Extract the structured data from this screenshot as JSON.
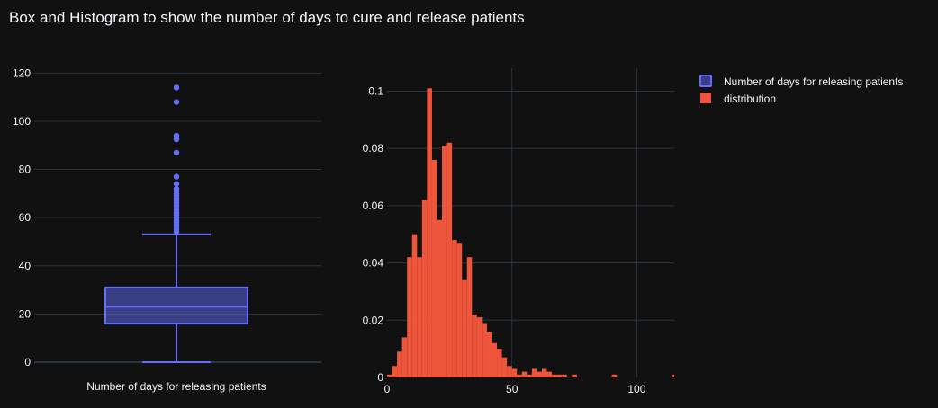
{
  "title": "Box and Histogram to show the number of days to cure and release patients",
  "colors": {
    "background": "#111111",
    "grid": "#283442",
    "box": "#636efa",
    "histogram": "#ef553b",
    "text": "#f2f5fa"
  },
  "chart_data": [
    {
      "type": "box",
      "category": "Number of days for releasing patients",
      "ylim": [
        -3,
        122
      ],
      "yticks": [
        0,
        20,
        40,
        60,
        80,
        100,
        120
      ],
      "min": 0,
      "q1": 16,
      "median": 23,
      "q3": 31,
      "upper_fence": 53,
      "outliers": [
        54,
        55,
        56,
        57,
        58,
        59,
        60,
        61,
        62,
        63,
        64,
        65,
        66,
        67,
        68,
        69,
        70,
        71,
        72,
        74,
        77,
        87,
        92.5,
        93.5,
        94,
        108,
        114
      ]
    },
    {
      "type": "histogram",
      "xlim": [
        0,
        115
      ],
      "ylim": [
        0,
        0.108
      ],
      "xticks": [
        0,
        50,
        100
      ],
      "yticks": [
        0,
        0.02,
        0.04,
        0.06,
        0.08,
        0.1
      ],
      "ytick_labels": [
        "0",
        "0.02",
        "0.04",
        "0.06",
        "0.08",
        "0.1"
      ],
      "bin_width": 2,
      "x": [
        0,
        2,
        4,
        6,
        8,
        10,
        12,
        14,
        16,
        18,
        20,
        22,
        24,
        26,
        28,
        30,
        32,
        34,
        36,
        38,
        40,
        42,
        44,
        46,
        48,
        50,
        52,
        54,
        56,
        58,
        60,
        62,
        64,
        66,
        68,
        70,
        72,
        74,
        76,
        78,
        80,
        82,
        84,
        86,
        88,
        90,
        92,
        94,
        96,
        98,
        100,
        102,
        104,
        106,
        108,
        110,
        112,
        114
      ],
      "values": [
        0.001,
        0.004,
        0.009,
        0.014,
        0.042,
        0.05,
        0.042,
        0.062,
        0.101,
        0.076,
        0.055,
        0.081,
        0.082,
        0.048,
        0.047,
        0.034,
        0.042,
        0.022,
        0.021,
        0.019,
        0.016,
        0.012,
        0.01,
        0.007,
        0.004,
        0.003,
        0.001,
        0.002,
        0.001,
        0.003,
        0.002,
        0.003,
        0.002,
        0.001,
        0.001,
        0.001,
        0,
        0.001,
        0,
        0,
        0,
        0,
        0,
        0,
        0,
        0.001,
        0,
        0,
        0,
        0,
        0,
        0,
        0,
        0,
        0,
        0,
        0,
        0.001
      ]
    }
  ],
  "legend": [
    {
      "label": "Number of days for releasing patients",
      "color": "#636efa"
    },
    {
      "label": "distribution",
      "color": "#ef553b"
    }
  ]
}
